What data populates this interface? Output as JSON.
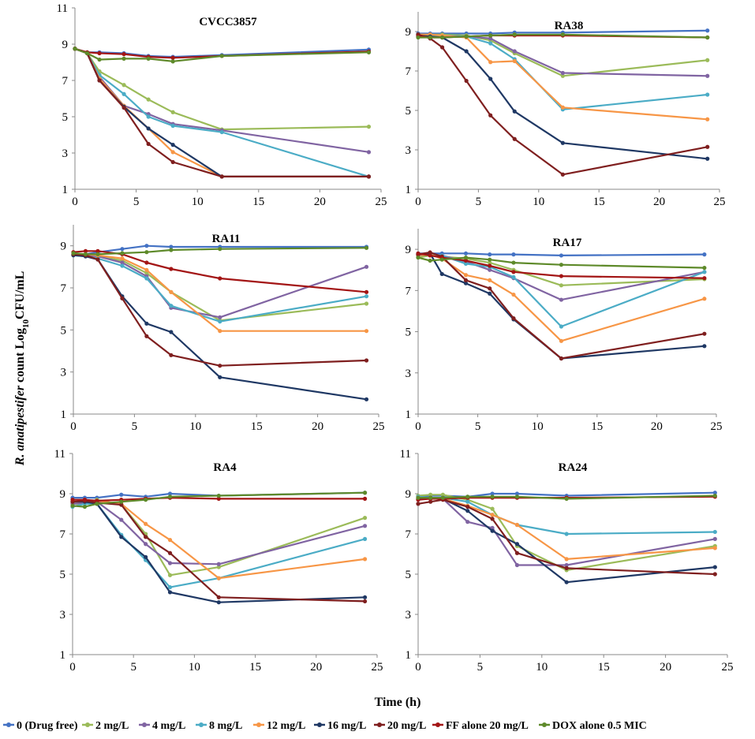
{
  "ylabel_italic": "R. anatipestifer",
  "ylabel_rest": " count Log",
  "ylabel_sub": "10",
  "ylabel_unit": "CFU/mL",
  "xlabel": "Time  (h)",
  "series_meta": [
    {
      "name": "0 (Drug free)",
      "color": "#4472C4"
    },
    {
      "name": "2 mg/L",
      "color": "#9BBB59"
    },
    {
      "name": "4 mg/L",
      "color": "#8064A2"
    },
    {
      "name": "8 mg/L",
      "color": "#4BACC6"
    },
    {
      "name": "12 mg/L",
      "color": "#F79646"
    },
    {
      "name": "16 mg/L",
      "color": "#1F3864"
    },
    {
      "name": "20 mg/L",
      "color": "#7F1F1F"
    },
    {
      "name": "FF alone 20 mg/L",
      "color": "#A31515"
    },
    {
      "name": "DOX alone 0.5 MIC",
      "color": "#5E8A2A"
    }
  ],
  "chart_data": [
    {
      "type": "line",
      "title": "CVCC3857",
      "ylim": [
        1,
        11
      ],
      "yticks": [
        1,
        3,
        5,
        7,
        9,
        11
      ],
      "xlim": [
        0,
        25
      ],
      "xticks": [
        0,
        5,
        10,
        15,
        20,
        25
      ],
      "x": [
        0,
        1,
        2,
        4,
        6,
        8,
        12,
        24
      ],
      "series": [
        {
          "name": "0 (Drug free)",
          "values": [
            8.75,
            8.55,
            8.55,
            8.5,
            8.35,
            8.3,
            8.4,
            8.7
          ]
        },
        {
          "name": "2 mg/L",
          "values": [
            8.75,
            8.5,
            7.5,
            6.75,
            5.95,
            5.25,
            4.3,
            4.45
          ]
        },
        {
          "name": "4 mg/L",
          "values": [
            8.75,
            8.5,
            7.2,
            5.6,
            5.15,
            4.6,
            4.25,
            3.05
          ]
        },
        {
          "name": "8 mg/L",
          "values": [
            8.75,
            8.5,
            7.3,
            6.25,
            5.0,
            4.5,
            4.15,
            1.7
          ]
        },
        {
          "name": "12 mg/L",
          "values": [
            8.75,
            8.5,
            7.1,
            5.6,
            4.35,
            3.05,
            1.7,
            1.7
          ]
        },
        {
          "name": "16 mg/L",
          "values": [
            8.75,
            8.5,
            7.0,
            5.55,
            4.35,
            3.45,
            1.7,
            1.7
          ]
        },
        {
          "name": "20 mg/L",
          "values": [
            8.75,
            8.5,
            7.0,
            5.5,
            3.5,
            2.5,
            1.7,
            1.7
          ]
        },
        {
          "name": "FF alone 20 mg/L",
          "values": [
            8.75,
            8.55,
            8.5,
            8.45,
            8.3,
            8.25,
            8.35,
            8.6
          ]
        },
        {
          "name": "DOX alone 0.5 MIC",
          "values": [
            8.75,
            8.5,
            8.15,
            8.2,
            8.2,
            8.05,
            8.35,
            8.55
          ]
        }
      ]
    },
    {
      "type": "line",
      "title": "RA38",
      "ylim": [
        1,
        10
      ],
      "yticks": [
        1,
        3,
        5,
        7,
        9
      ],
      "xlim": [
        0,
        25
      ],
      "xticks": [
        0,
        5,
        10,
        15,
        20,
        25
      ],
      "x": [
        0,
        1,
        2,
        4,
        6,
        8,
        12,
        24
      ],
      "series": [
        {
          "name": "0 (Drug free)",
          "values": [
            8.9,
            8.9,
            8.9,
            8.9,
            8.9,
            8.95,
            8.95,
            9.05
          ]
        },
        {
          "name": "2 mg/L",
          "values": [
            8.85,
            8.85,
            8.85,
            8.8,
            8.55,
            7.9,
            6.75,
            7.55
          ]
        },
        {
          "name": "4 mg/L",
          "values": [
            8.85,
            8.85,
            8.8,
            8.75,
            8.65,
            8.0,
            6.9,
            6.75
          ]
        },
        {
          "name": "8 mg/L",
          "values": [
            8.85,
            8.8,
            8.8,
            8.75,
            8.4,
            7.6,
            5.05,
            5.8
          ]
        },
        {
          "name": "12 mg/L",
          "values": [
            8.85,
            8.85,
            8.8,
            8.7,
            7.45,
            7.5,
            5.15,
            4.55
          ]
        },
        {
          "name": "16 mg/L",
          "values": [
            8.8,
            8.75,
            8.7,
            8.0,
            6.6,
            4.95,
            3.35,
            2.55
          ]
        },
        {
          "name": "20 mg/L",
          "values": [
            8.85,
            8.65,
            8.2,
            6.5,
            4.75,
            3.55,
            1.75,
            3.15
          ]
        },
        {
          "name": "FF alone 20 mg/L",
          "values": [
            8.75,
            8.7,
            8.7,
            8.75,
            8.8,
            8.8,
            8.8,
            8.7
          ]
        },
        {
          "name": "DOX alone 0.5 MIC",
          "values": [
            8.7,
            8.7,
            8.7,
            8.75,
            8.8,
            8.85,
            8.85,
            8.7
          ]
        }
      ]
    },
    {
      "type": "line",
      "title": "RA11",
      "ylim": [
        1,
        10
      ],
      "yticks": [
        1,
        3,
        5,
        7,
        9
      ],
      "xlim": [
        0,
        25
      ],
      "xticks": [
        0,
        5,
        10,
        15,
        20,
        25
      ],
      "x": [
        0,
        1,
        2,
        4,
        6,
        8,
        12,
        24
      ],
      "series": [
        {
          "name": "0 (Drug free)",
          "values": [
            8.6,
            8.6,
            8.7,
            8.85,
            9.0,
            8.95,
            8.95,
            8.95
          ]
        },
        {
          "name": "2 mg/L",
          "values": [
            8.6,
            8.55,
            8.5,
            8.3,
            7.7,
            6.8,
            5.45,
            6.25
          ]
        },
        {
          "name": "4 mg/L",
          "values": [
            8.6,
            8.55,
            8.5,
            8.2,
            7.55,
            6.05,
            5.6,
            8.0
          ]
        },
        {
          "name": "8 mg/L",
          "values": [
            8.55,
            8.5,
            8.4,
            8.05,
            7.45,
            6.15,
            5.4,
            6.6
          ]
        },
        {
          "name": "12 mg/L",
          "values": [
            8.6,
            8.6,
            8.55,
            8.4,
            7.85,
            6.8,
            4.95,
            4.95
          ]
        },
        {
          "name": "16 mg/L",
          "values": [
            8.55,
            8.5,
            8.35,
            6.6,
            5.3,
            4.9,
            2.75,
            1.7
          ]
        },
        {
          "name": "20 mg/L",
          "values": [
            8.6,
            8.55,
            8.35,
            6.5,
            4.7,
            3.8,
            3.3,
            3.55
          ]
        },
        {
          "name": "FF alone 20 mg/L",
          "values": [
            8.7,
            8.75,
            8.75,
            8.6,
            8.2,
            7.9,
            7.45,
            6.8
          ]
        },
        {
          "name": "DOX alone 0.5 MIC",
          "values": [
            8.65,
            8.6,
            8.6,
            8.65,
            8.7,
            8.8,
            8.85,
            8.9
          ]
        }
      ]
    },
    {
      "type": "line",
      "title": "RA17",
      "ylim": [
        1,
        10
      ],
      "yticks": [
        1,
        3,
        5,
        7,
        9
      ],
      "xlim": [
        0,
        25
      ],
      "xticks": [
        0,
        5,
        10,
        15,
        20,
        25
      ],
      "x": [
        0,
        1,
        2,
        4,
        6,
        8,
        12,
        24
      ],
      "series": [
        {
          "name": "0 (Drug free)",
          "values": [
            8.8,
            8.8,
            8.8,
            8.8,
            8.75,
            8.75,
            8.7,
            8.75
          ]
        },
        {
          "name": "2 mg/L",
          "values": [
            8.6,
            8.7,
            8.65,
            8.55,
            8.35,
            8.0,
            7.25,
            7.55
          ]
        },
        {
          "name": "4 mg/L",
          "values": [
            8.7,
            8.75,
            8.7,
            8.4,
            8.0,
            7.6,
            6.55,
            7.9
          ]
        },
        {
          "name": "8 mg/L",
          "values": [
            8.7,
            8.75,
            8.7,
            8.3,
            8.15,
            7.65,
            5.25,
            7.9
          ]
        },
        {
          "name": "12 mg/L",
          "values": [
            8.7,
            8.75,
            8.55,
            7.75,
            7.5,
            6.8,
            4.55,
            6.6
          ]
        },
        {
          "name": "16 mg/L",
          "values": [
            8.75,
            8.8,
            7.8,
            7.35,
            6.85,
            5.6,
            3.7,
            4.3
          ]
        },
        {
          "name": "20 mg/L",
          "values": [
            8.75,
            8.85,
            8.65,
            7.5,
            7.1,
            5.65,
            3.7,
            4.9
          ]
        },
        {
          "name": "FF alone 20 mg/L",
          "values": [
            8.8,
            8.7,
            8.6,
            8.45,
            8.2,
            7.9,
            7.7,
            7.6
          ]
        },
        {
          "name": "DOX alone 0.5 MIC",
          "values": [
            8.6,
            8.45,
            8.5,
            8.6,
            8.5,
            8.35,
            8.25,
            8.1
          ]
        }
      ]
    },
    {
      "type": "line",
      "title": "RA4",
      "ylim": [
        1,
        11
      ],
      "yticks": [
        1,
        3,
        5,
        7,
        9,
        11
      ],
      "xlim": [
        0,
        25
      ],
      "xticks": [
        0,
        5,
        10,
        15,
        20,
        25
      ],
      "x": [
        0,
        1,
        2,
        4,
        6,
        8,
        12,
        24
      ],
      "series": [
        {
          "name": "0 (Drug free)",
          "values": [
            8.8,
            8.8,
            8.8,
            8.95,
            8.85,
            9.0,
            8.9,
            9.05
          ]
        },
        {
          "name": "2 mg/L",
          "values": [
            8.5,
            8.5,
            8.7,
            8.45,
            7.0,
            4.95,
            5.35,
            7.8
          ]
        },
        {
          "name": "4 mg/L",
          "values": [
            8.5,
            8.55,
            8.6,
            7.7,
            6.5,
            5.55,
            5.5,
            7.4
          ]
        },
        {
          "name": "8 mg/L",
          "values": [
            8.35,
            8.5,
            8.5,
            6.95,
            5.7,
            4.35,
            4.8,
            6.75
          ]
        },
        {
          "name": "12 mg/L",
          "values": [
            8.6,
            8.6,
            8.65,
            8.5,
            7.5,
            6.7,
            4.8,
            5.75
          ]
        },
        {
          "name": "16 mg/L",
          "values": [
            8.6,
            8.6,
            8.5,
            6.85,
            5.85,
            4.1,
            3.6,
            3.85
          ]
        },
        {
          "name": "20 mg/L",
          "values": [
            8.6,
            8.65,
            8.55,
            8.45,
            6.85,
            6.05,
            3.85,
            3.65
          ]
        },
        {
          "name": "FF alone 20 mg/L",
          "values": [
            8.7,
            8.7,
            8.65,
            8.7,
            8.75,
            8.8,
            8.75,
            8.75
          ]
        },
        {
          "name": "DOX alone 0.5 MIC",
          "values": [
            8.4,
            8.35,
            8.5,
            8.6,
            8.7,
            8.85,
            8.9,
            9.05
          ]
        }
      ]
    },
    {
      "type": "line",
      "title": "RA24",
      "ylim": [
        1,
        11
      ],
      "yticks": [
        1,
        3,
        5,
        7,
        9,
        11
      ],
      "xlim": [
        0,
        25
      ],
      "xticks": [
        0,
        5,
        10,
        15,
        20,
        25
      ],
      "x": [
        0,
        1,
        2,
        4,
        6,
        8,
        12,
        24
      ],
      "series": [
        {
          "name": "0 (Drug free)",
          "values": [
            8.85,
            8.9,
            8.9,
            8.85,
            9.0,
            9.0,
            8.9,
            9.05
          ]
        },
        {
          "name": "2 mg/L",
          "values": [
            8.9,
            8.95,
            8.95,
            8.7,
            8.25,
            6.4,
            5.2,
            6.4
          ]
        },
        {
          "name": "4 mg/L",
          "values": [
            8.85,
            8.8,
            8.75,
            7.6,
            7.3,
            5.45,
            5.45,
            6.75
          ]
        },
        {
          "name": "8 mg/L",
          "values": [
            8.85,
            8.8,
            8.8,
            8.6,
            7.95,
            7.45,
            7.0,
            7.1
          ]
        },
        {
          "name": "12 mg/L",
          "values": [
            8.8,
            8.8,
            8.75,
            8.4,
            7.95,
            7.45,
            5.75,
            6.3
          ]
        },
        {
          "name": "16 mg/L",
          "values": [
            8.75,
            8.8,
            8.75,
            8.15,
            7.15,
            6.5,
            4.6,
            5.35
          ]
        },
        {
          "name": "20 mg/L",
          "values": [
            8.5,
            8.6,
            8.7,
            8.35,
            7.75,
            6.05,
            5.3,
            5.0
          ]
        },
        {
          "name": "FF alone 20 mg/L",
          "values": [
            8.7,
            8.75,
            8.75,
            8.8,
            8.8,
            8.8,
            8.8,
            8.85
          ]
        },
        {
          "name": "DOX alone 0.5 MIC",
          "values": [
            8.8,
            8.8,
            8.8,
            8.85,
            8.85,
            8.85,
            8.75,
            8.9
          ]
        }
      ]
    }
  ]
}
